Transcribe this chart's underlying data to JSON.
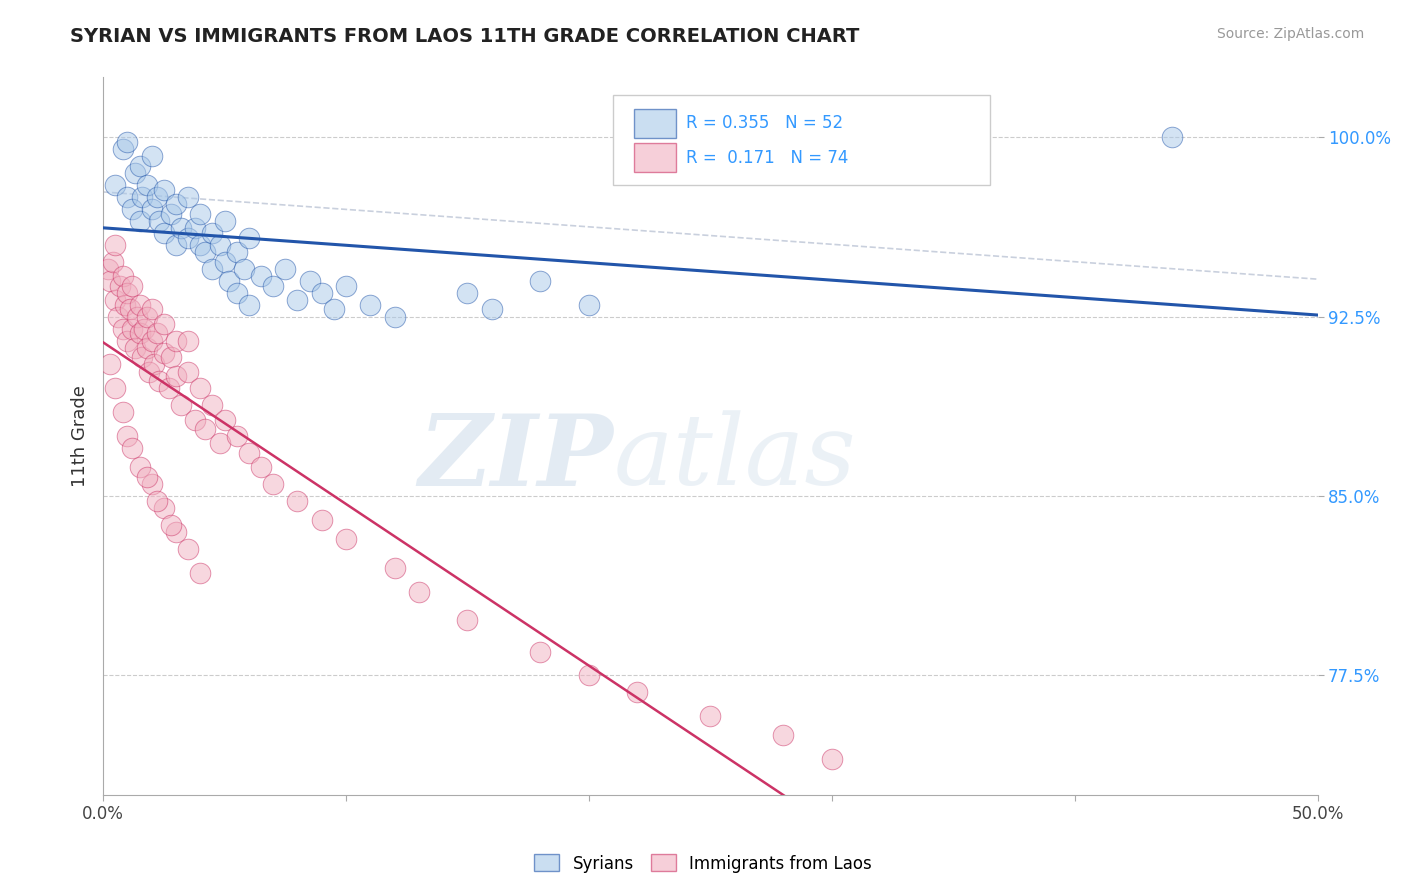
{
  "title": "SYRIAN VS IMMIGRANTS FROM LAOS 11TH GRADE CORRELATION CHART",
  "source": "Source: ZipAtlas.com",
  "ylabel": "11th Grade",
  "xmin": 0.0,
  "xmax": 0.5,
  "ymin": 0.725,
  "ymax": 1.025,
  "yticks": [
    0.775,
    0.85,
    0.925,
    1.0
  ],
  "ytick_labels": [
    "77.5%",
    "85.0%",
    "92.5%",
    "100.0%"
  ],
  "legend_r_blue": "0.355",
  "legend_n_blue": "52",
  "legend_r_pink": "0.171",
  "legend_n_pink": "74",
  "blue_color": "#a8c8e8",
  "pink_color": "#f0b0c0",
  "trend_blue_color": "#2255aa",
  "trend_pink_color": "#cc3366",
  "trend_gray_color": "#c0c8d8",
  "watermark_zip": "ZIP",
  "watermark_atlas": "atlas",
  "blue_scatter_x": [
    0.005,
    0.008,
    0.01,
    0.01,
    0.012,
    0.013,
    0.015,
    0.015,
    0.016,
    0.018,
    0.02,
    0.02,
    0.022,
    0.023,
    0.025,
    0.025,
    0.028,
    0.03,
    0.03,
    0.032,
    0.035,
    0.035,
    0.038,
    0.04,
    0.04,
    0.042,
    0.045,
    0.045,
    0.048,
    0.05,
    0.05,
    0.052,
    0.055,
    0.055,
    0.058,
    0.06,
    0.06,
    0.065,
    0.07,
    0.075,
    0.08,
    0.085,
    0.09,
    0.095,
    0.1,
    0.11,
    0.12,
    0.15,
    0.16,
    0.18,
    0.2,
    0.44
  ],
  "blue_scatter_y": [
    0.98,
    0.995,
    0.975,
    0.998,
    0.97,
    0.985,
    0.965,
    0.988,
    0.975,
    0.98,
    0.97,
    0.992,
    0.975,
    0.965,
    0.96,
    0.978,
    0.968,
    0.955,
    0.972,
    0.962,
    0.958,
    0.975,
    0.962,
    0.955,
    0.968,
    0.952,
    0.96,
    0.945,
    0.955,
    0.948,
    0.965,
    0.94,
    0.952,
    0.935,
    0.945,
    0.958,
    0.93,
    0.942,
    0.938,
    0.945,
    0.932,
    0.94,
    0.935,
    0.928,
    0.938,
    0.93,
    0.925,
    0.935,
    0.928,
    0.94,
    0.93,
    1.0
  ],
  "pink_scatter_x": [
    0.002,
    0.003,
    0.004,
    0.005,
    0.005,
    0.006,
    0.007,
    0.008,
    0.008,
    0.009,
    0.01,
    0.01,
    0.011,
    0.012,
    0.012,
    0.013,
    0.014,
    0.015,
    0.015,
    0.016,
    0.017,
    0.018,
    0.018,
    0.019,
    0.02,
    0.02,
    0.021,
    0.022,
    0.023,
    0.025,
    0.025,
    0.027,
    0.028,
    0.03,
    0.03,
    0.032,
    0.035,
    0.035,
    0.038,
    0.04,
    0.042,
    0.045,
    0.048,
    0.05,
    0.055,
    0.06,
    0.065,
    0.07,
    0.08,
    0.09,
    0.1,
    0.12,
    0.13,
    0.15,
    0.18,
    0.2,
    0.22,
    0.25,
    0.28,
    0.3,
    0.003,
    0.005,
    0.008,
    0.01,
    0.015,
    0.02,
    0.025,
    0.03,
    0.012,
    0.018,
    0.022,
    0.028,
    0.035,
    0.04
  ],
  "pink_scatter_y": [
    0.945,
    0.94,
    0.948,
    0.932,
    0.955,
    0.925,
    0.938,
    0.942,
    0.92,
    0.93,
    0.935,
    0.915,
    0.928,
    0.92,
    0.938,
    0.912,
    0.925,
    0.918,
    0.93,
    0.908,
    0.92,
    0.912,
    0.925,
    0.902,
    0.915,
    0.928,
    0.905,
    0.918,
    0.898,
    0.91,
    0.922,
    0.895,
    0.908,
    0.9,
    0.915,
    0.888,
    0.902,
    0.915,
    0.882,
    0.895,
    0.878,
    0.888,
    0.872,
    0.882,
    0.875,
    0.868,
    0.862,
    0.855,
    0.848,
    0.84,
    0.832,
    0.82,
    0.81,
    0.798,
    0.785,
    0.775,
    0.768,
    0.758,
    0.75,
    0.74,
    0.905,
    0.895,
    0.885,
    0.875,
    0.862,
    0.855,
    0.845,
    0.835,
    0.87,
    0.858,
    0.848,
    0.838,
    0.828,
    0.818
  ]
}
